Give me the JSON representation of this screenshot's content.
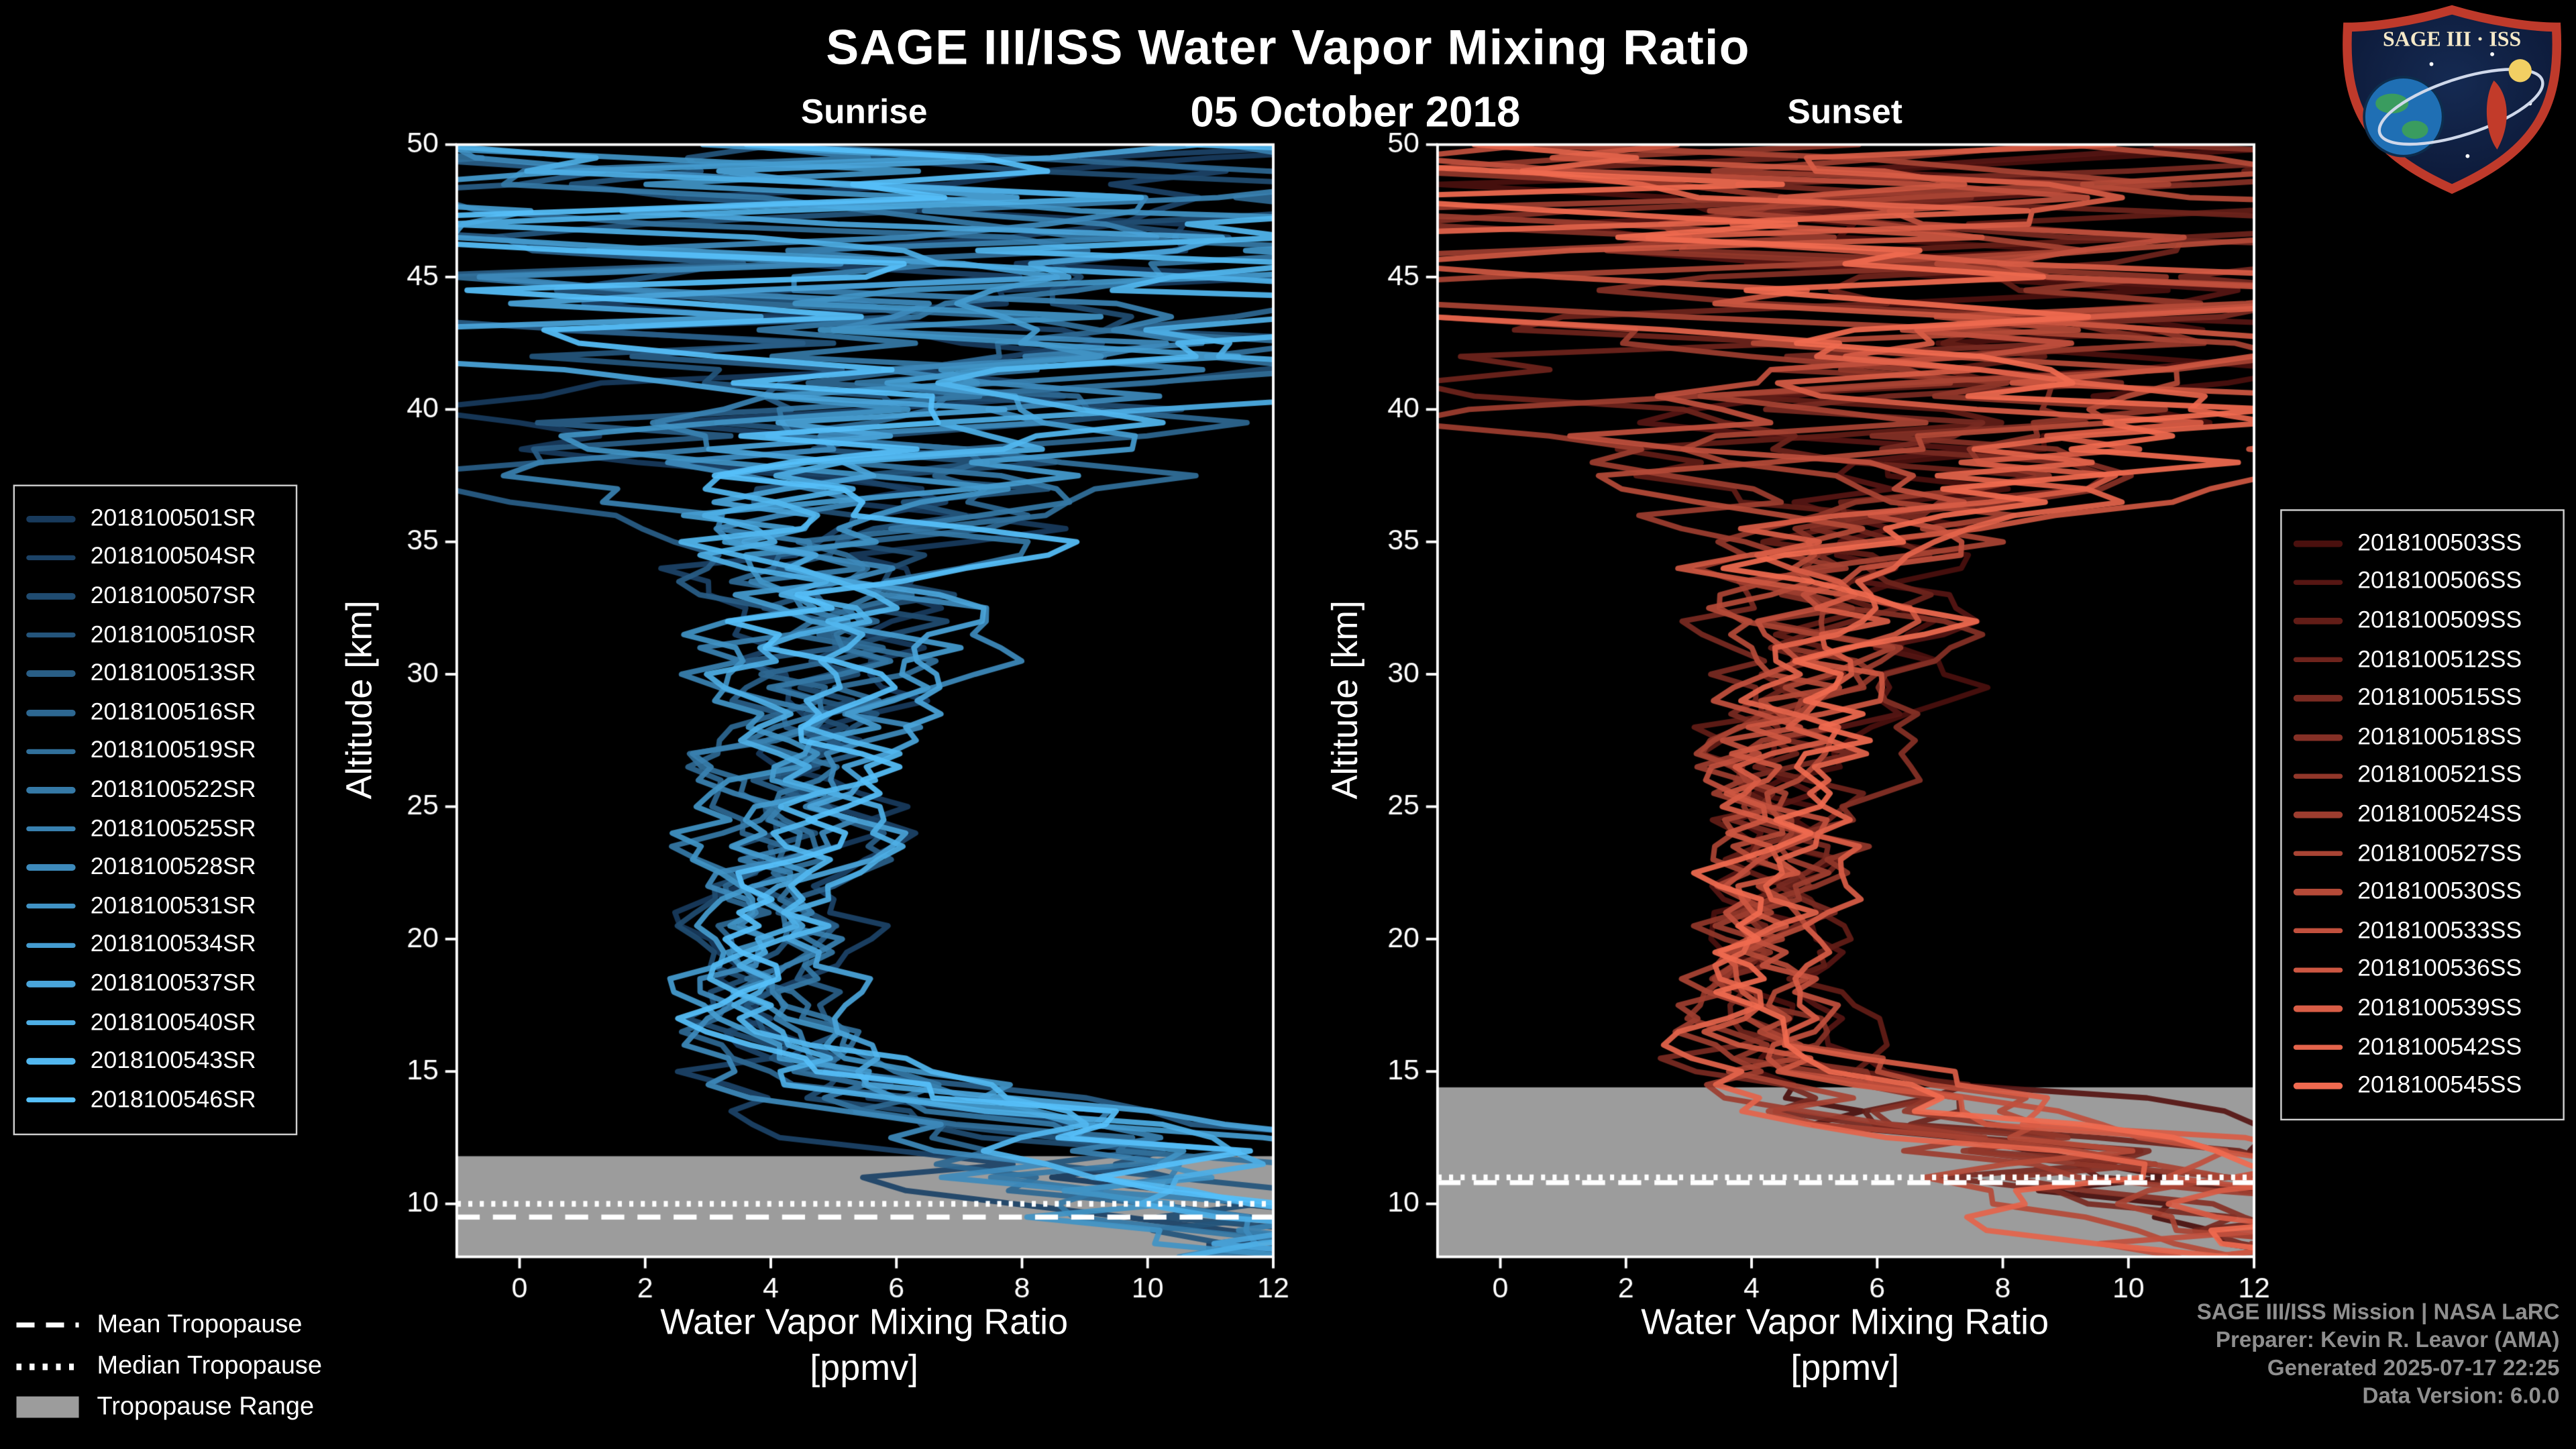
{
  "header": {
    "title": "SAGE III/ISS Water Vapor Mixing Ratio",
    "date": "05 October 2018"
  },
  "logo": {
    "text": "SAGE III · ISS"
  },
  "tropopause_legend": {
    "mean_label": "Mean Tropopause",
    "median_label": "Median Tropopause",
    "range_label": "Tropopause Range"
  },
  "credits": {
    "line1": "SAGE III/ISS Mission | NASA LaRC",
    "line2": "Preparer: Kevin R. Leavor (AMA)",
    "line3": "Generated 2025-07-17 22:25",
    "line4": "Data Version: 6.0.0"
  },
  "chart_data": [
    {
      "type": "line",
      "title": "Sunrise",
      "xlabel": "Water Vapor Mixing Ratio",
      "xunits": "[ppmv]",
      "ylabel": "Altitude [km]",
      "xlim": [
        -1,
        12
      ],
      "ylim": [
        8,
        50
      ],
      "xticks": [
        0,
        2,
        4,
        6,
        8,
        10,
        12
      ],
      "yticks": [
        10,
        15,
        20,
        25,
        30,
        35,
        40,
        45,
        50
      ],
      "grid": false,
      "legend_position": "outside-left",
      "tropopause": {
        "mean": 9.5,
        "median": 10.0,
        "range": [
          8,
          11.8
        ]
      },
      "series": [
        {
          "name": "2018100501SR",
          "color": "#183a5c"
        },
        {
          "name": "2018100504SR",
          "color": "#1c4367"
        },
        {
          "name": "2018100507SR",
          "color": "#204c71"
        },
        {
          "name": "2018100510SR",
          "color": "#24557c"
        },
        {
          "name": "2018100513SR",
          "color": "#295e86"
        },
        {
          "name": "2018100516SR",
          "color": "#2d6791"
        },
        {
          "name": "2018100519SR",
          "color": "#31709b"
        },
        {
          "name": "2018100522SR",
          "color": "#3579a6"
        },
        {
          "name": "2018100525SR",
          "color": "#3981b0"
        },
        {
          "name": "2018100528SR",
          "color": "#3d8abb"
        },
        {
          "name": "2018100531SR",
          "color": "#4193c5"
        },
        {
          "name": "2018100534SR",
          "color": "#459cd0"
        },
        {
          "name": "2018100537SR",
          "color": "#4aa5da"
        },
        {
          "name": "2018100540SR",
          "color": "#4eaee5"
        },
        {
          "name": "2018100543SR",
          "color": "#52b7ef"
        },
        {
          "name": "2018100546SR",
          "color": "#56c0fa"
        }
      ],
      "profile": {
        "altitudes": [
          8,
          9,
          10,
          11,
          12,
          13,
          14,
          15,
          16,
          17,
          18,
          19,
          20,
          21,
          22,
          23,
          24,
          25,
          26,
          27,
          28,
          29,
          30,
          31,
          32,
          33,
          34,
          35,
          36,
          37,
          38,
          39,
          40,
          41,
          42,
          43,
          44,
          45,
          46,
          47,
          48,
          49,
          50
        ],
        "mean": [
          13,
          13,
          12.5,
          11.5,
          10,
          8.2,
          6.5,
          5.2,
          4.5,
          4.1,
          3.9,
          3.9,
          4,
          4.1,
          4.2,
          4.3,
          4.45,
          4.55,
          4.65,
          4.75,
          4.85,
          4.95,
          5.05,
          5.15,
          5.25,
          5.35,
          5.45,
          5.55,
          5.65,
          5.75,
          5.85,
          5.9,
          6,
          6.05,
          6.1,
          6.15,
          6.2,
          6.25,
          6.3,
          6.35,
          6.4,
          6.45,
          6.5
        ],
        "spread": [
          2.5,
          2.5,
          2.5,
          2.5,
          2.3,
          2,
          1.6,
          1.2,
          0.9,
          0.75,
          0.7,
          0.7,
          0.75,
          0.8,
          0.8,
          0.85,
          0.85,
          0.9,
          0.95,
          1,
          1,
          1.05,
          1.1,
          1.2,
          1.3,
          1.45,
          1.6,
          1.8,
          2.1,
          2.5,
          2.9,
          3.3,
          3.8,
          4.2,
          4.6,
          4.9,
          5.1,
          5.3,
          5.5,
          5.6,
          5.7,
          5.8,
          5.9
        ]
      }
    },
    {
      "type": "line",
      "title": "Sunset",
      "xlabel": "Water Vapor Mixing Ratio",
      "xunits": "[ppmv]",
      "ylabel": "Altitude [km]",
      "xlim": [
        -1,
        12
      ],
      "ylim": [
        8,
        50
      ],
      "xticks": [
        0,
        2,
        4,
        6,
        8,
        10,
        12
      ],
      "yticks": [
        10,
        15,
        20,
        25,
        30,
        35,
        40,
        45,
        50
      ],
      "grid": false,
      "legend_position": "outside-right",
      "tropopause": {
        "mean": 10.8,
        "median": 11.0,
        "range": [
          8,
          14.4
        ]
      },
      "series": [
        {
          "name": "2018100503SS",
          "color": "#4a100e"
        },
        {
          "name": "2018100506SS",
          "color": "#561613"
        },
        {
          "name": "2018100509SS",
          "color": "#621d17"
        },
        {
          "name": "2018100512SS",
          "color": "#6e231c"
        },
        {
          "name": "2018100515SS",
          "color": "#792a21"
        },
        {
          "name": "2018100518SS",
          "color": "#853026"
        },
        {
          "name": "2018100521SS",
          "color": "#91372a"
        },
        {
          "name": "2018100524SS",
          "color": "#9d3d2f"
        },
        {
          "name": "2018100527SS",
          "color": "#a94434"
        },
        {
          "name": "2018100530SS",
          "color": "#b54a38"
        },
        {
          "name": "2018100533SS",
          "color": "#c1503d"
        },
        {
          "name": "2018100536SS",
          "color": "#cd5742"
        },
        {
          "name": "2018100539SS",
          "color": "#d85d46"
        },
        {
          "name": "2018100542SS",
          "color": "#e4644b"
        },
        {
          "name": "2018100545SS",
          "color": "#f06a50"
        }
      ],
      "profile": {
        "altitudes": [
          8,
          9,
          10,
          11,
          12,
          13,
          14,
          15,
          16,
          17,
          18,
          19,
          20,
          21,
          22,
          23,
          24,
          25,
          26,
          27,
          28,
          29,
          30,
          31,
          32,
          33,
          34,
          35,
          36,
          37,
          38,
          39,
          40,
          41,
          42,
          43,
          44,
          45,
          46,
          47,
          48,
          49,
          50
        ],
        "mean": [
          13,
          13,
          12.5,
          11.5,
          10,
          8.2,
          6.5,
          5.2,
          4.6,
          4.2,
          4,
          4,
          4.1,
          4.2,
          4.3,
          4.4,
          4.5,
          4.6,
          4.7,
          4.8,
          4.9,
          5,
          5.1,
          5.2,
          5.3,
          5.4,
          5.5,
          5.6,
          5.7,
          5.8,
          5.9,
          5.95,
          6.05,
          6.1,
          6.15,
          6.2,
          6.25,
          6.3,
          6.35,
          6.4,
          6.45,
          6.5,
          6.55
        ],
        "spread": [
          2.5,
          2.5,
          2.5,
          2.5,
          2.3,
          2,
          1.6,
          1.2,
          0.9,
          0.75,
          0.7,
          0.7,
          0.75,
          0.8,
          0.8,
          0.85,
          0.85,
          0.9,
          0.95,
          1,
          1,
          1.05,
          1.1,
          1.2,
          1.3,
          1.45,
          1.6,
          1.8,
          2.1,
          2.5,
          2.9,
          3.3,
          3.8,
          4.2,
          4.6,
          4.9,
          5.1,
          5.3,
          5.5,
          5.6,
          5.7,
          5.8,
          5.9
        ]
      }
    }
  ]
}
